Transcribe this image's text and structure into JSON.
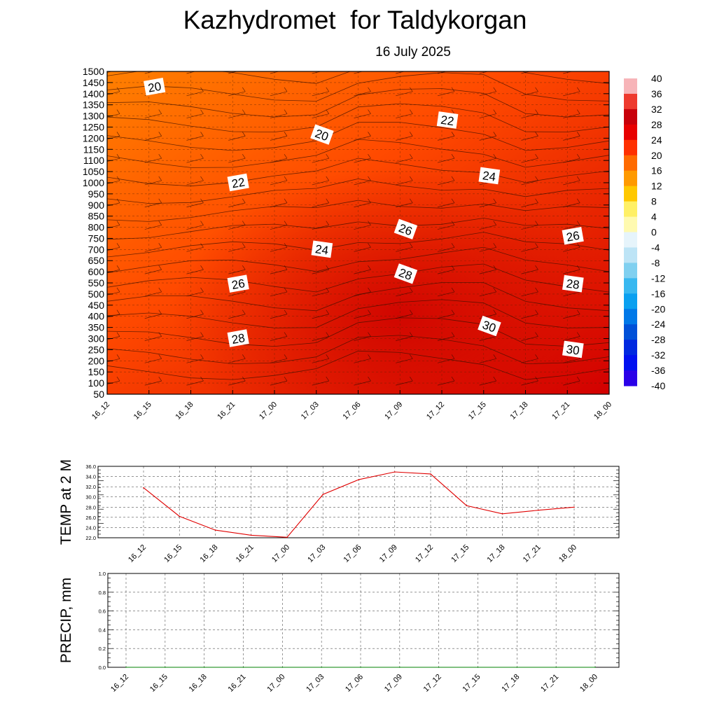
{
  "title": "Kazhydromet  for Taldykorgan",
  "subtitle": "16 July 2025",
  "x_ticks": [
    "16_12",
    "16_15",
    "16_18",
    "16_21",
    "17_00",
    "17_03",
    "17_06",
    "17_09",
    "17_12",
    "17_15",
    "17_18",
    "17_21",
    "18_00"
  ],
  "chart_data": [
    {
      "type": "heatmap",
      "y_ticks": [
        1500,
        1450,
        1400,
        1350,
        1300,
        1250,
        1200,
        1150,
        1100,
        1050,
        1000,
        950,
        900,
        850,
        800,
        750,
        700,
        650,
        600,
        550,
        500,
        450,
        400,
        350,
        300,
        250,
        200,
        150,
        100,
        50
      ],
      "ylim": [
        50,
        1500
      ],
      "colorbar": {
        "labels": [
          40,
          36,
          32,
          28,
          24,
          20,
          16,
          12,
          8,
          4,
          0,
          -4,
          -8,
          -12,
          -16,
          -20,
          -24,
          -28,
          -32,
          -36,
          -40
        ],
        "colors": {
          "40": "#f7b4b8",
          "36": "#ee3a2e",
          "32": "#c8000a",
          "28": "#e80000",
          "24": "#ff3000",
          "20": "#ff6a00",
          "16": "#ff9a00",
          "12": "#ffc800",
          "8": "#fff066",
          "4": "#fffab0",
          "0": "#e6f4fb",
          "-4": "#bde4f6",
          "-8": "#80d0f0",
          "-12": "#38b8f0",
          "-16": "#0aa0f0",
          "-20": "#0078e8",
          "-24": "#0050d8",
          "-28": "#0028e0",
          "-32": "#0010f0",
          "-36": "#2a00e8",
          "-40": "#8030e0"
        }
      },
      "contour_labels": [
        {
          "text": "20",
          "x": "16_15",
          "y": 1430
        },
        {
          "text": "22",
          "x": "17_12",
          "y": 1280
        },
        {
          "text": "20",
          "x": "17_03",
          "y": 1215
        },
        {
          "text": "22",
          "x": "16_21",
          "y": 1000
        },
        {
          "text": "24",
          "x": "17_15",
          "y": 1030
        },
        {
          "text": "26",
          "x": "17_09",
          "y": 790
        },
        {
          "text": "26",
          "x": "17_21",
          "y": 760
        },
        {
          "text": "24",
          "x": "17_03",
          "y": 700
        },
        {
          "text": "28",
          "x": "17_09",
          "y": 590
        },
        {
          "text": "26",
          "x": "16_21",
          "y": 545
        },
        {
          "text": "28",
          "x": "17_21",
          "y": 545
        },
        {
          "text": "30",
          "x": "17_15",
          "y": 355
        },
        {
          "text": "28",
          "x": "16_21",
          "y": 300
        },
        {
          "text": "30",
          "x": "17_21",
          "y": 250
        }
      ]
    },
    {
      "type": "line",
      "ylabel": "TEMP at 2 M",
      "ylim": [
        22.0,
        36.0
      ],
      "y_ticks": [
        "36.0",
        "34.0",
        "32.0",
        "30.0",
        "28.0",
        "26.0",
        "24.0",
        "22.0"
      ],
      "x": [
        "16_12",
        "16_15",
        "16_18",
        "16_21",
        "17_00",
        "17_03",
        "17_06",
        "17_09",
        "17_12",
        "17_15",
        "17_18",
        "17_21",
        "18_00"
      ],
      "values": [
        31.8,
        26.2,
        23.5,
        22.5,
        22.1,
        30.5,
        33.4,
        34.9,
        34.5,
        28.3,
        26.7,
        27.4,
        28.0
      ],
      "line_color": "#e00000"
    },
    {
      "type": "line",
      "ylabel": "PRECIP, mm",
      "ylim": [
        0.0,
        1.0
      ],
      "y_ticks": [
        "1.0",
        "0.8",
        "0.6",
        "0.4",
        "0.2",
        "0.0"
      ],
      "x": [
        "16_12",
        "16_15",
        "16_18",
        "16_21",
        "17_00",
        "17_03",
        "17_06",
        "17_09",
        "17_12",
        "17_15",
        "17_18",
        "17_21",
        "18_00"
      ],
      "values": [
        0,
        0,
        0,
        0,
        0,
        0,
        0,
        0,
        0,
        0,
        0,
        0,
        0
      ],
      "line_color": "#008000"
    }
  ]
}
